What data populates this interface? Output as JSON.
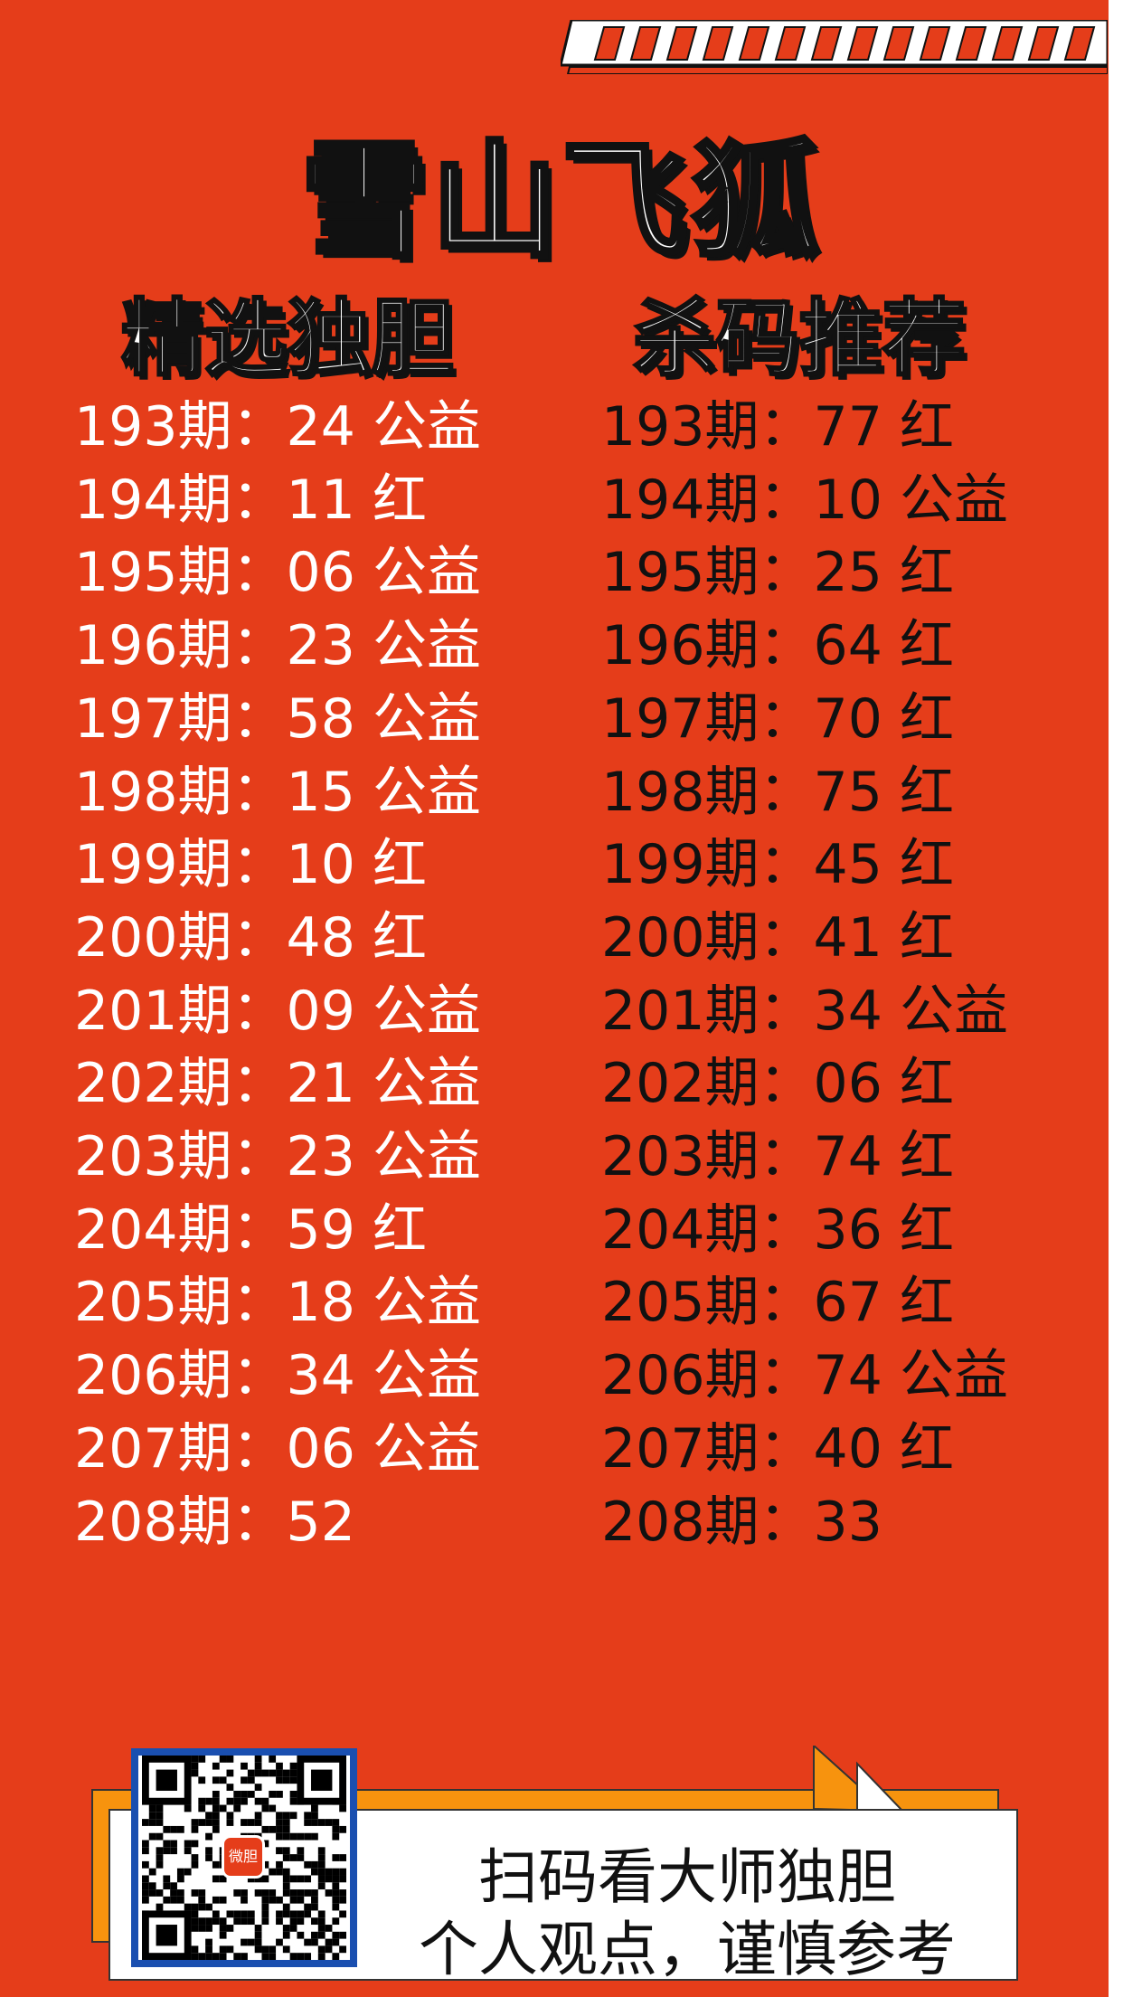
{
  "title": "雪山飞狐",
  "left_header": "精选独胆",
  "right_header": "杀码推荐",
  "left_rows": [
    "193期：24 公益",
    "194期：11 红",
    "195期：06 公益",
    "196期：23 公益",
    "197期：58 公益",
    "198期：15 公益",
    "199期：10 红",
    "200期：48 红",
    "201期：09 公益",
    "202期：21 公益",
    "203期：23 公益",
    "204期：59 红",
    "205期：18 公益",
    "206期：34 公益",
    "207期：06 公益",
    "208期：52"
  ],
  "right_rows": [
    "193期：77 红",
    "194期：10 公益",
    "195期：25 红",
    "196期：64 红",
    "197期：70 红",
    "198期：75 红",
    "199期：45 红",
    "200期：41 红",
    "201期：34 公益",
    "202期：06 红",
    "203期：74 红",
    "204期：36 红",
    "205期：67 红",
    "206期：74 公益",
    "207期：40 红",
    "208期：33"
  ],
  "footer": {
    "line1": "扫码看大师独胆",
    "line2": "个人观点，谨慎参考",
    "qr_logo_text": "微胆"
  },
  "colors": {
    "background": "#e53d1a",
    "accent": "#f7930e",
    "qr_border": "#1a4fb0"
  }
}
